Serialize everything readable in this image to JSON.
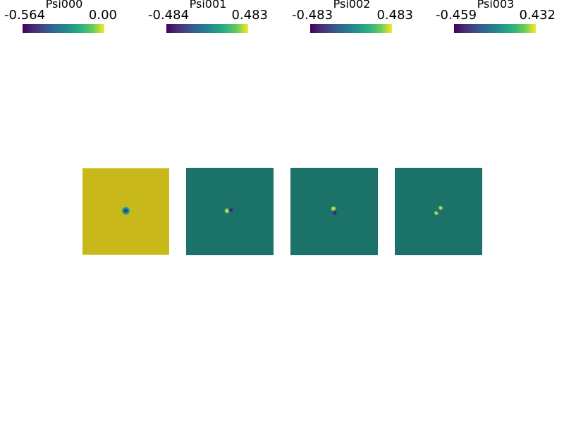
{
  "colorbars": [
    {
      "title": "Psi000",
      "min": "-0.564",
      "max": "0.00"
    },
    {
      "title": "Psi001",
      "min": "-0.484",
      "max": "0.483"
    },
    {
      "title": "Psi002",
      "min": "-0.483",
      "max": "0.483"
    },
    {
      "title": "Psi003",
      "min": "-0.459",
      "max": "0.432"
    }
  ],
  "colormap": [
    "#440154",
    "#482878",
    "#3e4a89",
    "#31688e",
    "#26828e",
    "#1f9e89",
    "#35b779",
    "#6ece58",
    "#fde725"
  ],
  "panels": [
    {
      "name": "Psi000",
      "background": "#c8b81a"
    },
    {
      "name": "Psi001",
      "background": "#1a7268"
    },
    {
      "name": "Psi002",
      "background": "#1a7268"
    },
    {
      "name": "Psi003",
      "background": "#1a7268"
    }
  ]
}
